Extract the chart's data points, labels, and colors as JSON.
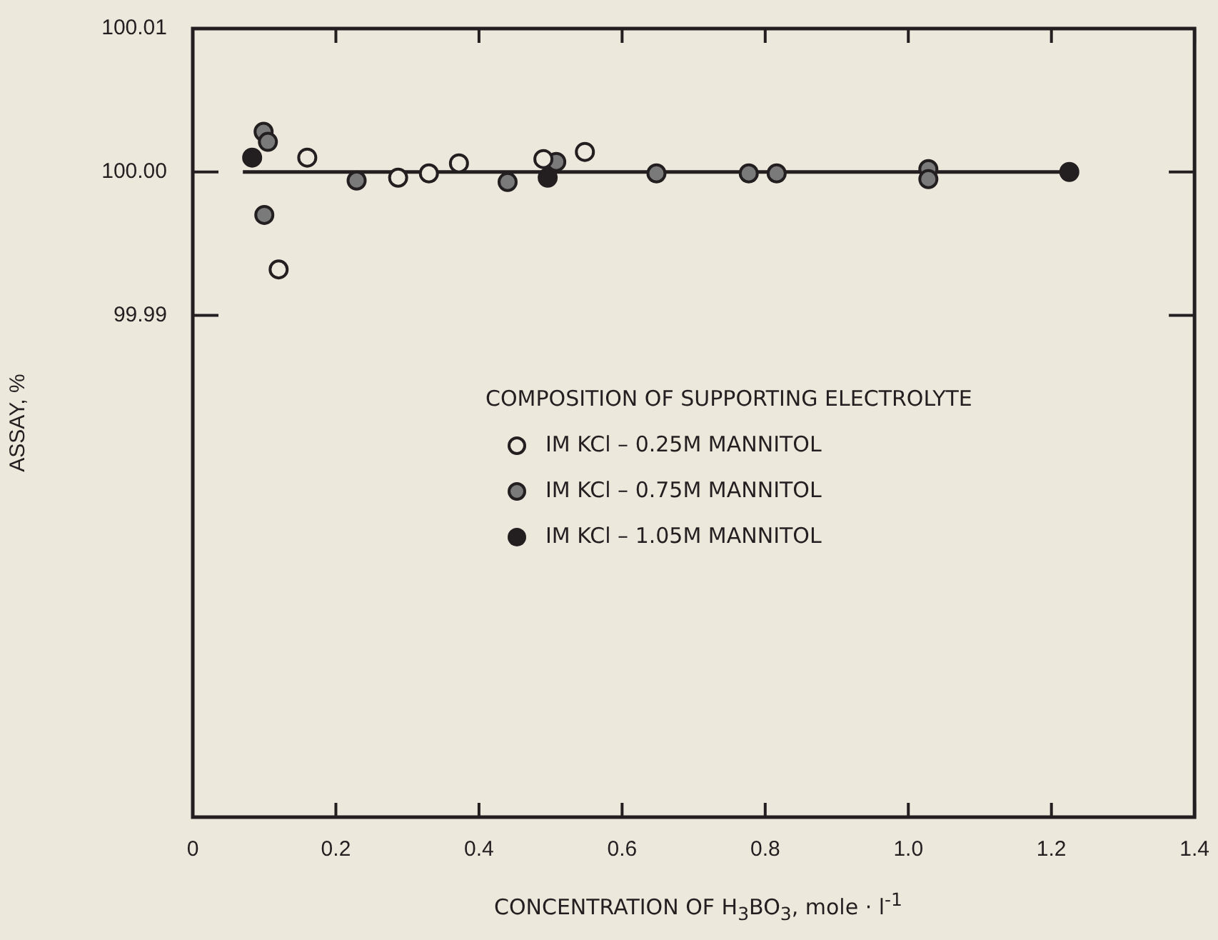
{
  "chart_data": {
    "type": "scatter",
    "xlabel": "CONCENTRATION OF H$_{3}$BO$_{3}$, mole · l$^{-1}$",
    "ylabel": "ASSAY, %",
    "legend_title": "COMPOSITION OF SUPPORTING ELECTROLYTE",
    "legend": "right",
    "marker": "circle",
    "grid": false,
    "xlim": [
      0,
      1.4
    ],
    "xticks": [
      0,
      0.2,
      0.4,
      0.6,
      0.8,
      {
        "value": 1,
        "label": "1.0"
      },
      1.2,
      1.4
    ],
    "ylim": [
      99.955,
      100.01
    ],
    "yticks": [
      {
        "value": 99.99,
        "label": "99.99"
      },
      {
        "value": 100,
        "label": "100.00"
      },
      {
        "value": 100.01,
        "label": "100.01"
      }
    ],
    "series": [
      {
        "name": "IM KCl – 0.25M MANNITOL",
        "color": "#ece8dc",
        "x": [
          0.12,
          0.16,
          0.287,
          0.33,
          0.372,
          0.49,
          0.548
        ],
        "values": [
          99.9932,
          100.001,
          99.9996,
          99.9999,
          100.0006,
          100.0009,
          100.0014
        ]
      },
      {
        "name": "IM KCl – 0.75M MANNITOL",
        "color": "#7a7a7a",
        "x": [
          0.099,
          0.105,
          0.1,
          0.229,
          0.44,
          0.508,
          0.648,
          0.777,
          0.816,
          1.028,
          1.028
        ],
        "values": [
          100.0028,
          100.0021,
          99.997,
          99.9994,
          99.9993,
          100.0007,
          99.9999,
          99.9999,
          99.9999,
          100.0002,
          99.9995
        ]
      },
      {
        "name": "IM KCl – 1.05M MANNITOL",
        "color": "#231f20",
        "x": [
          0.083,
          0.496,
          1.225
        ],
        "values": [
          100.001,
          99.9996,
          100.0
        ]
      },
      {
        "type": "line",
        "color": "#231f20",
        "marker": "none",
        "x": [
          0.07,
          1.23
        ],
        "values": [
          100.0,
          100.0
        ]
      }
    ]
  }
}
